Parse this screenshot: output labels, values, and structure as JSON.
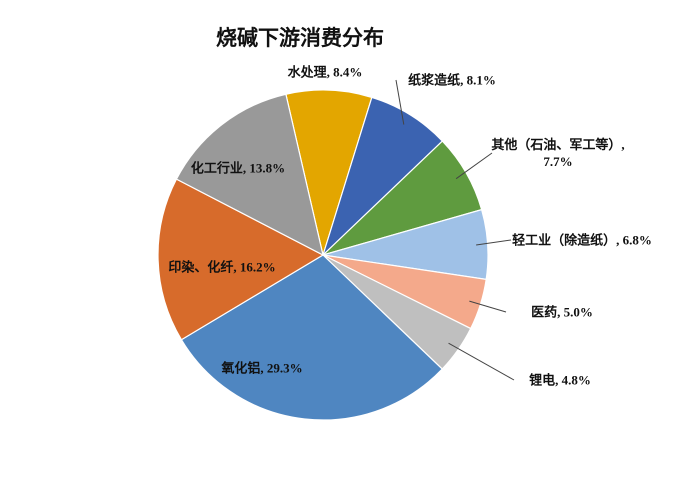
{
  "chart_data": {
    "type": "pie",
    "title": "烧碱下游消费分布",
    "categories": [
      "水处理",
      "纸浆造纸",
      "其他（石油、军工等）",
      "轻工业（除造纸）",
      "医药",
      "锂电",
      "氧化铝",
      "印染、化纤",
      "化工行业"
    ],
    "values": [
      8.4,
      8.1,
      7.7,
      6.8,
      5.0,
      4.8,
      29.3,
      16.2,
      13.8
    ],
    "value_labels": [
      "8.4%",
      "8.1%",
      "7.7%",
      "6.8%",
      "5.0%",
      "4.8%",
      "29.3%",
      "16.2%",
      "13.8%"
    ],
    "colors": [
      "#e3a600",
      "#3b63b1",
      "#5f9b3f",
      "#9fc1e7",
      "#f4a98b",
      "#bfbfbf",
      "#4f86c1",
      "#d76b2b",
      "#999999"
    ]
  }
}
